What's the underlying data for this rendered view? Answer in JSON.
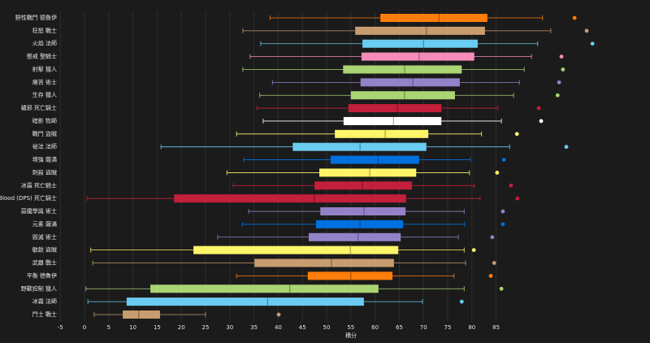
{
  "chart_data": {
    "type": "boxplot",
    "x_label": "積分",
    "xlim": [
      -5,
      115
    ],
    "xticks": [
      -5,
      0,
      5,
      10,
      15,
      20,
      25,
      30,
      35,
      40,
      45,
      50,
      55,
      60,
      65,
      70,
      75,
      80,
      85
    ],
    "grid": true,
    "categories": [
      "野性戰鬥 德魯伊",
      "狂怒 戰士",
      "火焰 法師",
      "懲戒 聖騎士",
      "射擊 獵人",
      "痛苦 術士",
      "生存 獵人",
      "穢邪 死亡騎士",
      "暗影 牧師",
      "戰鬥 盜賊",
      "祕法 法師",
      "增強 薩滿",
      "刺殺 盜賊",
      "冰霜 死亡騎士",
      "Blood (DPS) 死亡騎士",
      "惡魔學識 術士",
      "元素 薩滿",
      "毀滅 術士",
      "敏銳 盜賊",
      "武器 戰士",
      "平衡 德魯伊",
      "野獸控制 獵人",
      "冰霜 法師",
      "鬥士 戰士"
    ],
    "colors": [
      "#ff7d0a",
      "#c79c6e",
      "#69ccf0",
      "#f58cba",
      "#abd473",
      "#9482c9",
      "#abd473",
      "#c41f3b",
      "#ffffff",
      "#fff569",
      "#69ccf0",
      "#0070de",
      "#fff569",
      "#c41f3b",
      "#c41f3b",
      "#9482c9",
      "#0070de",
      "#9482c9",
      "#fff569",
      "#c79c6e",
      "#ff7d0a",
      "#abd473",
      "#69ccf0",
      "#c79c6e"
    ],
    "boxes": [
      [
        38.3,
        61.1,
        73.2,
        83.2,
        94.6
      ],
      [
        32.7,
        55.9,
        70.6,
        82.7,
        96.3
      ],
      [
        36.4,
        57.4,
        70.0,
        81.2,
        93.6
      ],
      [
        34.2,
        57.2,
        69.1,
        80.5,
        92.3
      ],
      [
        32.7,
        53.4,
        66.1,
        77.9,
        90.8
      ],
      [
        38.8,
        57.0,
        67.8,
        77.5,
        89.8
      ],
      [
        36.2,
        55.0,
        66.1,
        76.5,
        88.6
      ],
      [
        35.6,
        54.5,
        64.6,
        73.7,
        85.4
      ],
      [
        36.9,
        53.5,
        63.8,
        73.7,
        86.1
      ],
      [
        31.4,
        51.7,
        62.1,
        71.0,
        82.0
      ],
      [
        15.8,
        43.0,
        56.9,
        70.6,
        87.8
      ],
      [
        32.9,
        50.8,
        60.6,
        69.1,
        79.7
      ],
      [
        29.4,
        48.5,
        58.9,
        68.5,
        79.5
      ],
      [
        30.7,
        47.5,
        57.4,
        67.6,
        80.5
      ],
      [
        0.5,
        18.5,
        47.5,
        66.4,
        81.7
      ],
      [
        33.9,
        48.7,
        57.7,
        66.3,
        78.4
      ],
      [
        32.6,
        47.8,
        56.9,
        65.8,
        78.5
      ],
      [
        27.5,
        46.3,
        56.5,
        65.3,
        77.2
      ],
      [
        1.3,
        22.5,
        54.9,
        64.8,
        78.4
      ],
      [
        1.7,
        35.1,
        51.0,
        63.9,
        78.7
      ],
      [
        31.4,
        46.1,
        55.0,
        63.6,
        76.3
      ],
      [
        0.3,
        13.6,
        42.4,
        60.7,
        78.4
      ],
      [
        0.7,
        8.7,
        37.8,
        57.7,
        69.8
      ],
      [
        2.0,
        7.9,
        11.2,
        15.6,
        25.0
      ]
    ],
    "outliers": [
      101.2,
      103.7,
      104.9,
      98.5,
      98.8,
      98.0,
      97.7,
      93.8,
      94.3,
      89.3,
      99.5,
      86.6,
      85.2,
      88.1,
      89.4,
      86.4,
      86.4,
      84.2,
      80.4,
      84.6,
      83.9,
      86.1,
      77.9,
      40.1
    ]
  }
}
